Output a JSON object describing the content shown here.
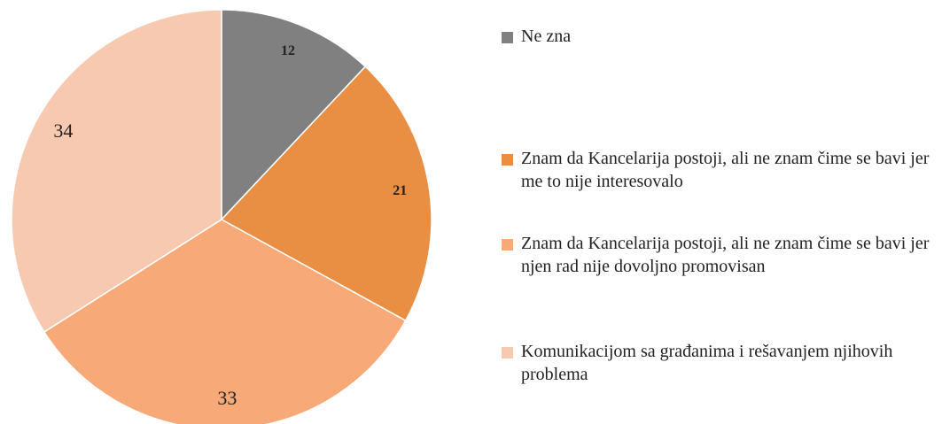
{
  "chart_data": {
    "type": "pie",
    "categories": [
      "Ne zna",
      "Znam da Kancelarija postoji, ali ne znam čime se bavi jer me to nije interesovalo",
      "Znam da Kancelarija postoji, ali ne znam čime se bavi jer njen rad nije dovoljno promovisan",
      "Komunikacijom sa građanima i rešavanjem njihovih problema"
    ],
    "values": [
      12,
      21,
      33,
      34
    ],
    "colors": [
      "#808080",
      "#e98f43",
      "#f7aa78",
      "#f8c9b1"
    ],
    "legend": "right"
  }
}
